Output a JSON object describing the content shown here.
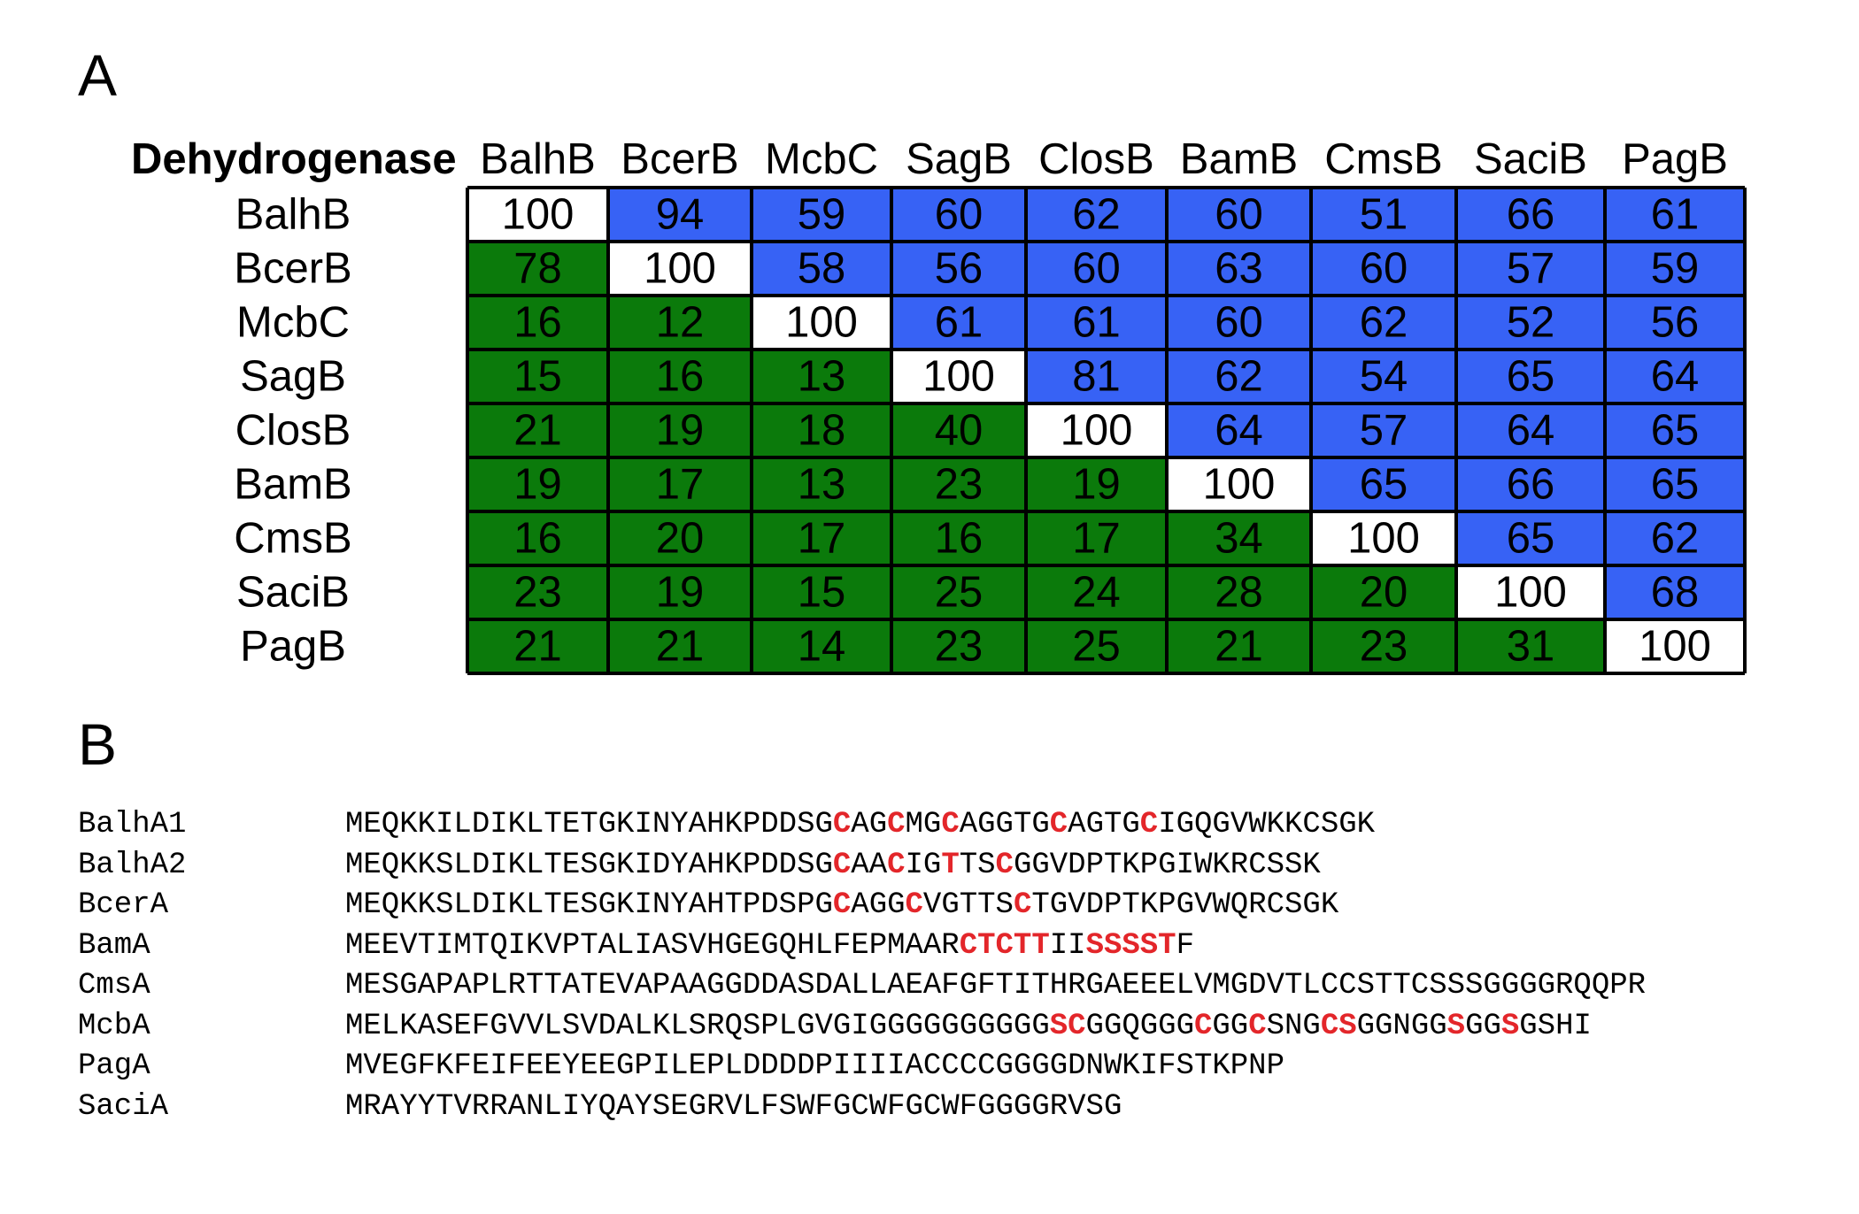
{
  "panel_labels": {
    "a": "A",
    "b": "B"
  },
  "colors": {
    "upper": "#3762f5",
    "lower": "#0b7a0b",
    "diagonal": "#ffffff",
    "highlight": "#e3262a"
  },
  "chart_data": {
    "type": "heatmap",
    "corner_label": "Dehydrogenase",
    "columns": [
      "BalhB",
      "BcerB",
      "McbC",
      "SagB",
      "ClosB",
      "BamB",
      "CmsB",
      "SaciB",
      "PagB"
    ],
    "rows": [
      "BalhB",
      "BcerB",
      "McbC",
      "SagB",
      "ClosB",
      "BamB",
      "CmsB",
      "SaciB",
      "PagB"
    ],
    "values": [
      [
        100,
        94,
        59,
        60,
        62,
        60,
        51,
        66,
        61
      ],
      [
        78,
        100,
        58,
        56,
        60,
        63,
        60,
        57,
        59
      ],
      [
        16,
        12,
        100,
        61,
        61,
        60,
        62,
        52,
        56
      ],
      [
        15,
        16,
        13,
        100,
        81,
        62,
        54,
        65,
        64
      ],
      [
        21,
        19,
        18,
        40,
        100,
        64,
        57,
        64,
        65
      ],
      [
        19,
        17,
        13,
        23,
        19,
        100,
        65,
        66,
        65
      ],
      [
        16,
        20,
        17,
        16,
        17,
        34,
        100,
        65,
        62
      ],
      [
        23,
        19,
        15,
        25,
        24,
        28,
        20,
        100,
        68
      ],
      [
        21,
        21,
        14,
        23,
        25,
        21,
        23,
        31,
        100
      ]
    ],
    "cell_color_rule": "above diagonal blue, below diagonal green, diagonal white"
  },
  "sequences": [
    {
      "name": "BalhA1",
      "segments": [
        {
          "t": "MEQKKILDIKLTETGKINYAHKPDDSG",
          "h": false
        },
        {
          "t": "C",
          "h": true
        },
        {
          "t": "AG",
          "h": false
        },
        {
          "t": "C",
          "h": true
        },
        {
          "t": "MG",
          "h": false
        },
        {
          "t": "C",
          "h": true
        },
        {
          "t": "AGGTG",
          "h": false
        },
        {
          "t": "C",
          "h": true
        },
        {
          "t": "AGTG",
          "h": false
        },
        {
          "t": "C",
          "h": true
        },
        {
          "t": "IGQGVWKKCSGK",
          "h": false
        }
      ]
    },
    {
      "name": "BalhA2",
      "segments": [
        {
          "t": "MEQKKSLDIKLTESGKIDYAHKPDDSG",
          "h": false
        },
        {
          "t": "C",
          "h": true
        },
        {
          "t": "AA",
          "h": false
        },
        {
          "t": "C",
          "h": true
        },
        {
          "t": "IG",
          "h": false
        },
        {
          "t": "T",
          "h": true
        },
        {
          "t": "TS",
          "h": false
        },
        {
          "t": "C",
          "h": true
        },
        {
          "t": "GGVDPTKPGIWKRCSSK",
          "h": false
        }
      ]
    },
    {
      "name": "BcerA",
      "segments": [
        {
          "t": "MEQKKSLDIKLTESGKINYAHTPDSPG",
          "h": false
        },
        {
          "t": "C",
          "h": true
        },
        {
          "t": "AGG",
          "h": false
        },
        {
          "t": "C",
          "h": true
        },
        {
          "t": "VGTTS",
          "h": false
        },
        {
          "t": "C",
          "h": true
        },
        {
          "t": "TGVDPTKPGVWQRCSGK",
          "h": false
        }
      ]
    },
    {
      "name": "BamA",
      "segments": [
        {
          "t": "MEEVTIMTQIKVPTALIASVHGEGQHLFEPMAAR",
          "h": false
        },
        {
          "t": "CTCTT",
          "h": true
        },
        {
          "t": "II",
          "h": false
        },
        {
          "t": "SSSST",
          "h": true
        },
        {
          "t": "F",
          "h": false
        }
      ]
    },
    {
      "name": "CmsA",
      "segments": [
        {
          "t": "MESGAPAPLRTTATEVAPAAGGDDASDALLAEAFGFTITHRGAEEELVMGDVTLCCSTTCSSSGGGGRQQPR",
          "h": false
        }
      ]
    },
    {
      "name": "McbA",
      "segments": [
        {
          "t": "MELKASEFGVVLSVDALKLSRQSPLGVGIGGGGGGGGGG",
          "h": false
        },
        {
          "t": "SC",
          "h": true
        },
        {
          "t": "GGQGGG",
          "h": false
        },
        {
          "t": "C",
          "h": true
        },
        {
          "t": "GG",
          "h": false
        },
        {
          "t": "C",
          "h": true
        },
        {
          "t": "SNG",
          "h": false
        },
        {
          "t": "CS",
          "h": true
        },
        {
          "t": "GGNGG",
          "h": false
        },
        {
          "t": "S",
          "h": true
        },
        {
          "t": "GG",
          "h": false
        },
        {
          "t": "S",
          "h": true
        },
        {
          "t": "GSHI",
          "h": false
        }
      ]
    },
    {
      "name": "PagA",
      "segments": [
        {
          "t": "MVEGFKFEIFEEYEEGPILEPLDDDDPIIIIACCCCGGGGDNWKIFSTKPNP",
          "h": false
        }
      ]
    },
    {
      "name": "SaciA",
      "segments": [
        {
          "t": "MRAYYTVRRANLIYQAYSEGRVLFSWFGCWFGCWFGGGGRVSG",
          "h": false
        }
      ]
    }
  ]
}
